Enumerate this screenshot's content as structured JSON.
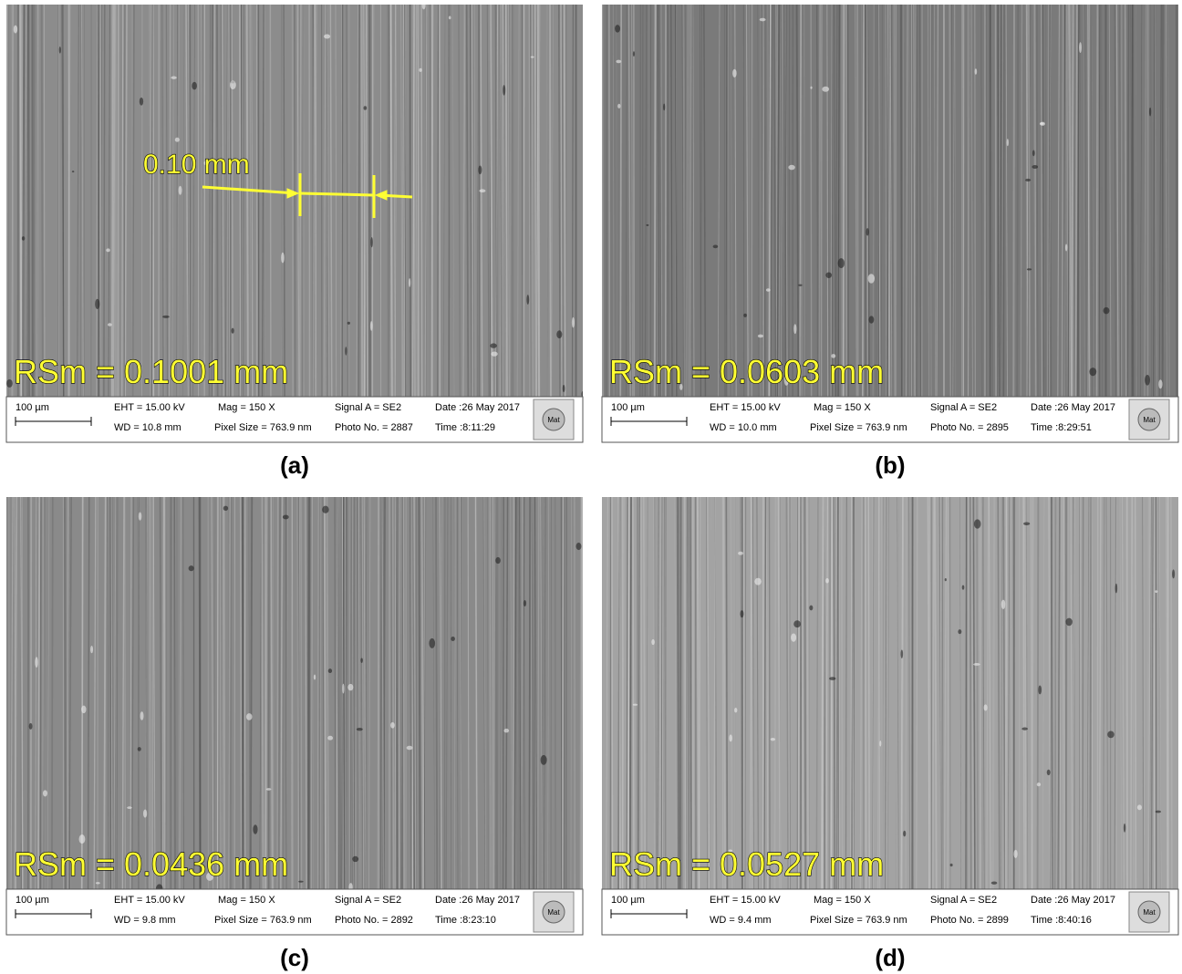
{
  "panels": [
    {
      "label": "(a)",
      "rsm": "RSm = 0.1001 mm",
      "annotation": "0.10 mm",
      "scale": "100 µm",
      "eht": "EHT = 15.00 kV",
      "wd": "WD = 10.8 mm",
      "mag": "Mag =   150 X",
      "pixel": "Pixel Size = 763.9 nm",
      "signal": "Signal A = SE2",
      "photo": "Photo No. = 2887",
      "date": "Date :26 May 2017",
      "time": "Time :8:11:29",
      "logo": "Mat"
    },
    {
      "label": "(b)",
      "rsm": "RSm = 0.0603 mm",
      "scale": "100 µm",
      "eht": "EHT = 15.00 kV",
      "wd": "WD = 10.0 mm",
      "mag": "Mag =   150 X",
      "pixel": "Pixel Size = 763.9 nm",
      "signal": "Signal A = SE2",
      "photo": "Photo No. = 2895",
      "date": "Date :26 May 2017",
      "time": "Time :8:29:51",
      "logo": "Mat"
    },
    {
      "label": "(c)",
      "rsm": "RSm = 0.0436 mm",
      "scale": "100 µm",
      "eht": "EHT = 15.00 kV",
      "wd": "WD =  9.8 mm",
      "mag": "Mag =   150 X",
      "pixel": "Pixel Size = 763.9 nm",
      "signal": "Signal A = SE2",
      "photo": "Photo No. = 2892",
      "date": "Date :26 May 2017",
      "time": "Time :8:23:10",
      "logo": "Mat"
    },
    {
      "label": "(d)",
      "rsm": "RSm = 0.0527 mm",
      "scale": "100 µm",
      "eht": "EHT = 15.00 kV",
      "wd": "WD =  9.4 mm",
      "mag": "Mag =   150 X",
      "pixel": "Pixel Size = 763.9 nm",
      "signal": "Signal A = SE2",
      "photo": "Photo No. = 2899",
      "date": "Date :26 May 2017",
      "time": "Time :8:40:16",
      "logo": "Mat"
    }
  ]
}
